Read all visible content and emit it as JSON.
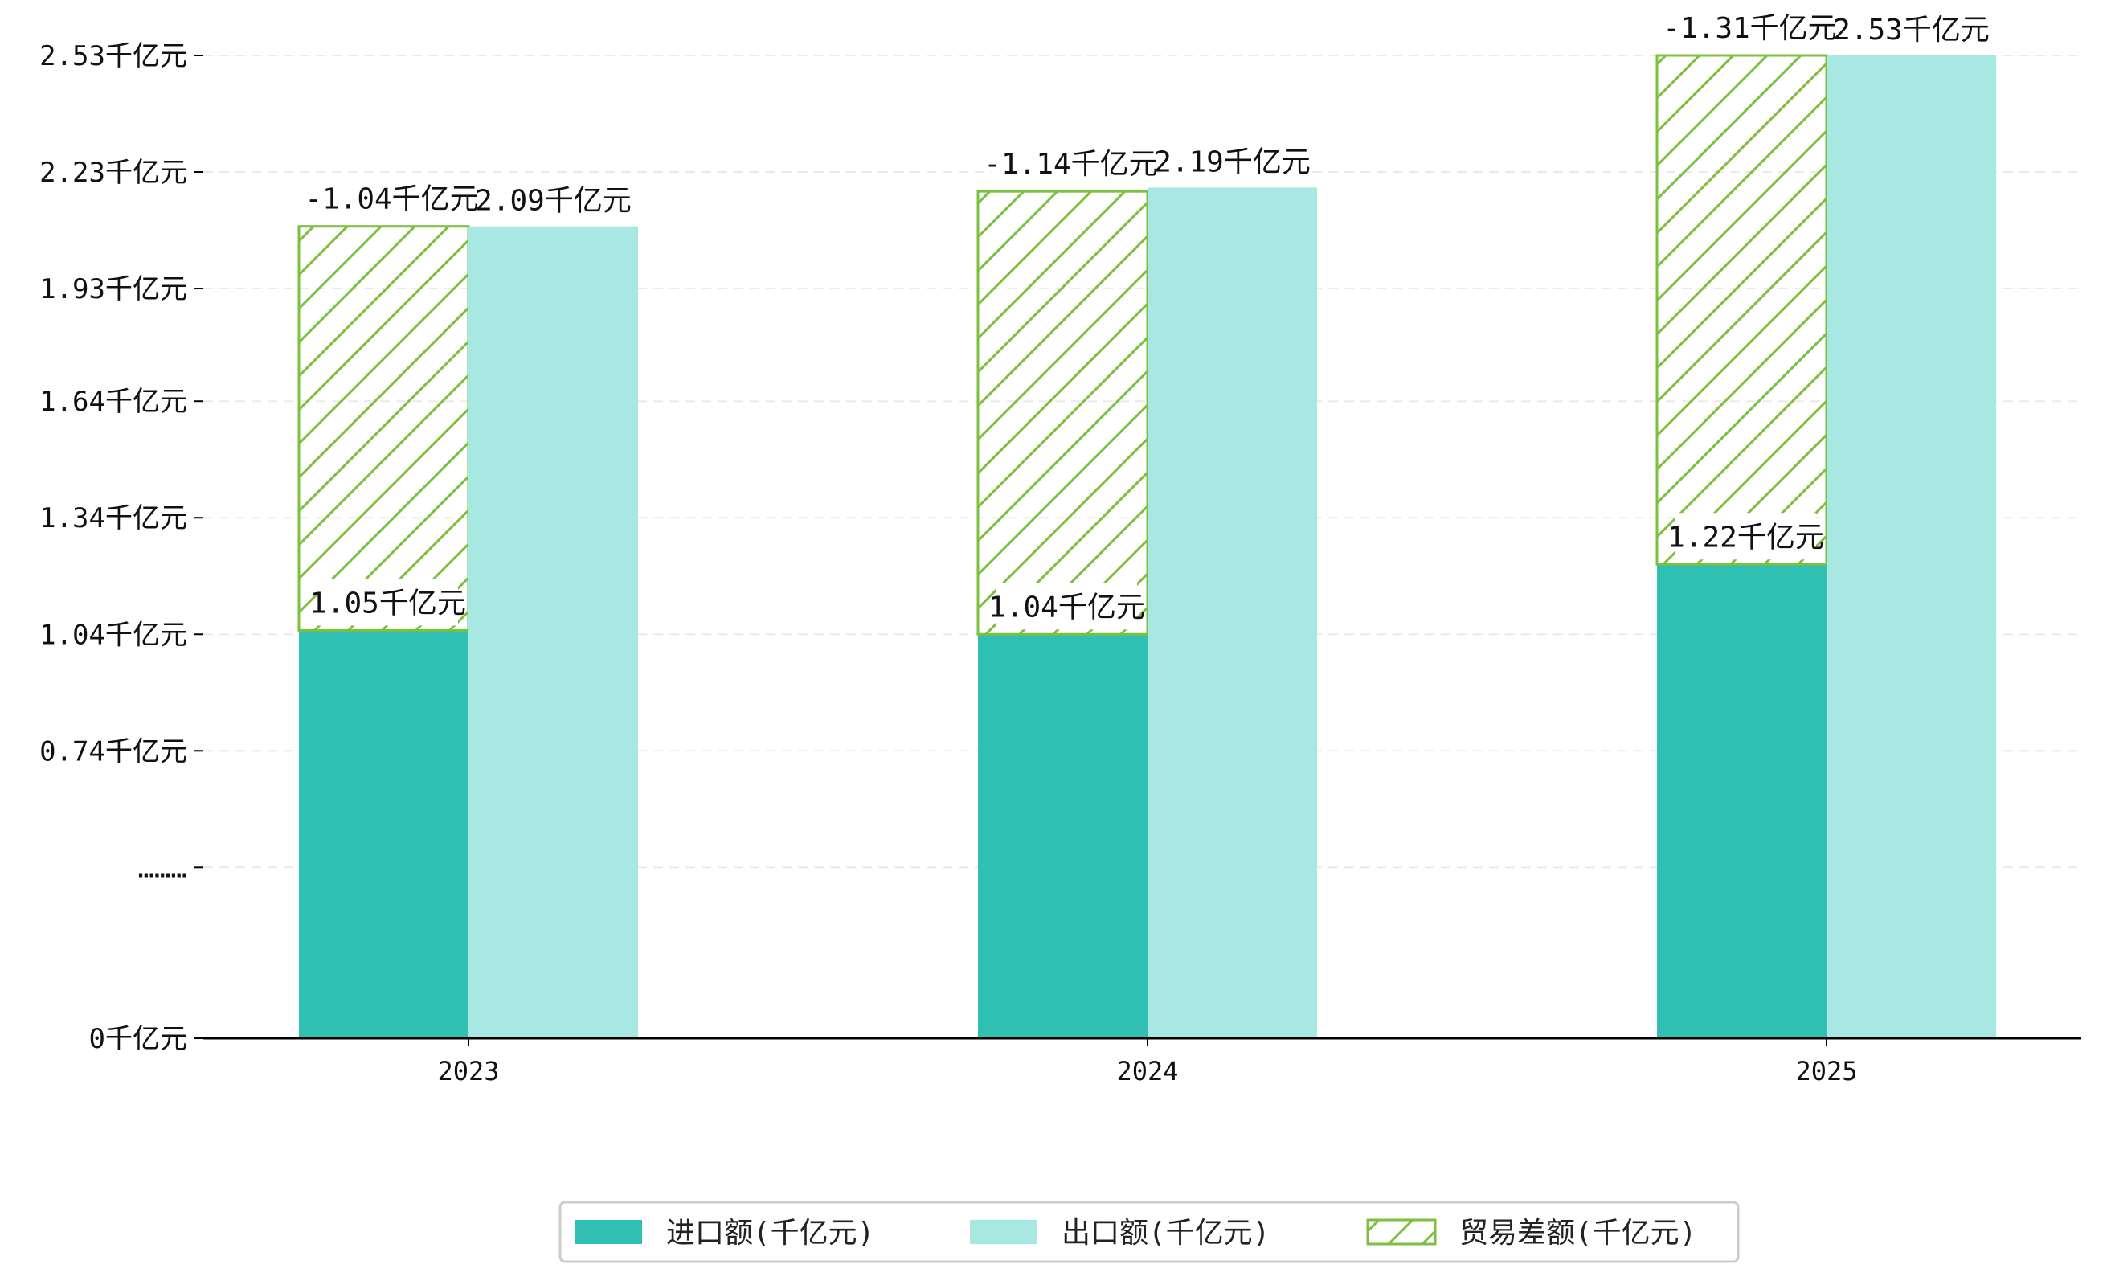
{
  "colors": {
    "import": "#2fbfb3",
    "export": "#a8e8e2",
    "balance_hatch": "#7dbf3f",
    "axis": "#000000",
    "grid": "#dddddd"
  },
  "chart_data": {
    "type": "bar",
    "title": "",
    "xlabel": "",
    "ylabel": "",
    "categories": [
      "2023",
      "2024",
      "2025"
    ],
    "ylim": [
      0,
      2.53
    ],
    "y_axis_break": true,
    "y_ticks": [
      {
        "value": 0,
        "label": "0千亿元"
      },
      {
        "value": 0.44,
        "label": "………"
      },
      {
        "value": 0.74,
        "label": "0.74千亿元"
      },
      {
        "value": 1.04,
        "label": "1.04千亿元"
      },
      {
        "value": 1.34,
        "label": "1.34千亿元"
      },
      {
        "value": 1.64,
        "label": "1.64千亿元"
      },
      {
        "value": 1.93,
        "label": "1.93千亿元"
      },
      {
        "value": 2.23,
        "label": "2.23千亿元"
      },
      {
        "value": 2.53,
        "label": "2.53千亿元"
      }
    ],
    "grid": true,
    "legend_position": "bottom-center",
    "series": [
      {
        "name": "进口额(千亿元)",
        "values": [
          1.05,
          1.04,
          1.22
        ],
        "labels": [
          "1.05千亿元",
          "1.04千亿元",
          "1.22千亿元"
        ]
      },
      {
        "name": "出口额(千亿元)",
        "values": [
          2.09,
          2.19,
          2.53
        ],
        "labels": [
          "2.09千亿元",
          "2.19千亿元",
          "2.53千亿元"
        ]
      },
      {
        "name": "贸易差额(千亿元)",
        "values": [
          -1.04,
          -1.14,
          -1.31
        ],
        "labels": [
          "-1.04千亿元",
          "-1.14千亿元",
          "-1.31千亿元"
        ],
        "stacked_on": "进口额(千亿元)",
        "pattern": "hatch"
      }
    ]
  }
}
